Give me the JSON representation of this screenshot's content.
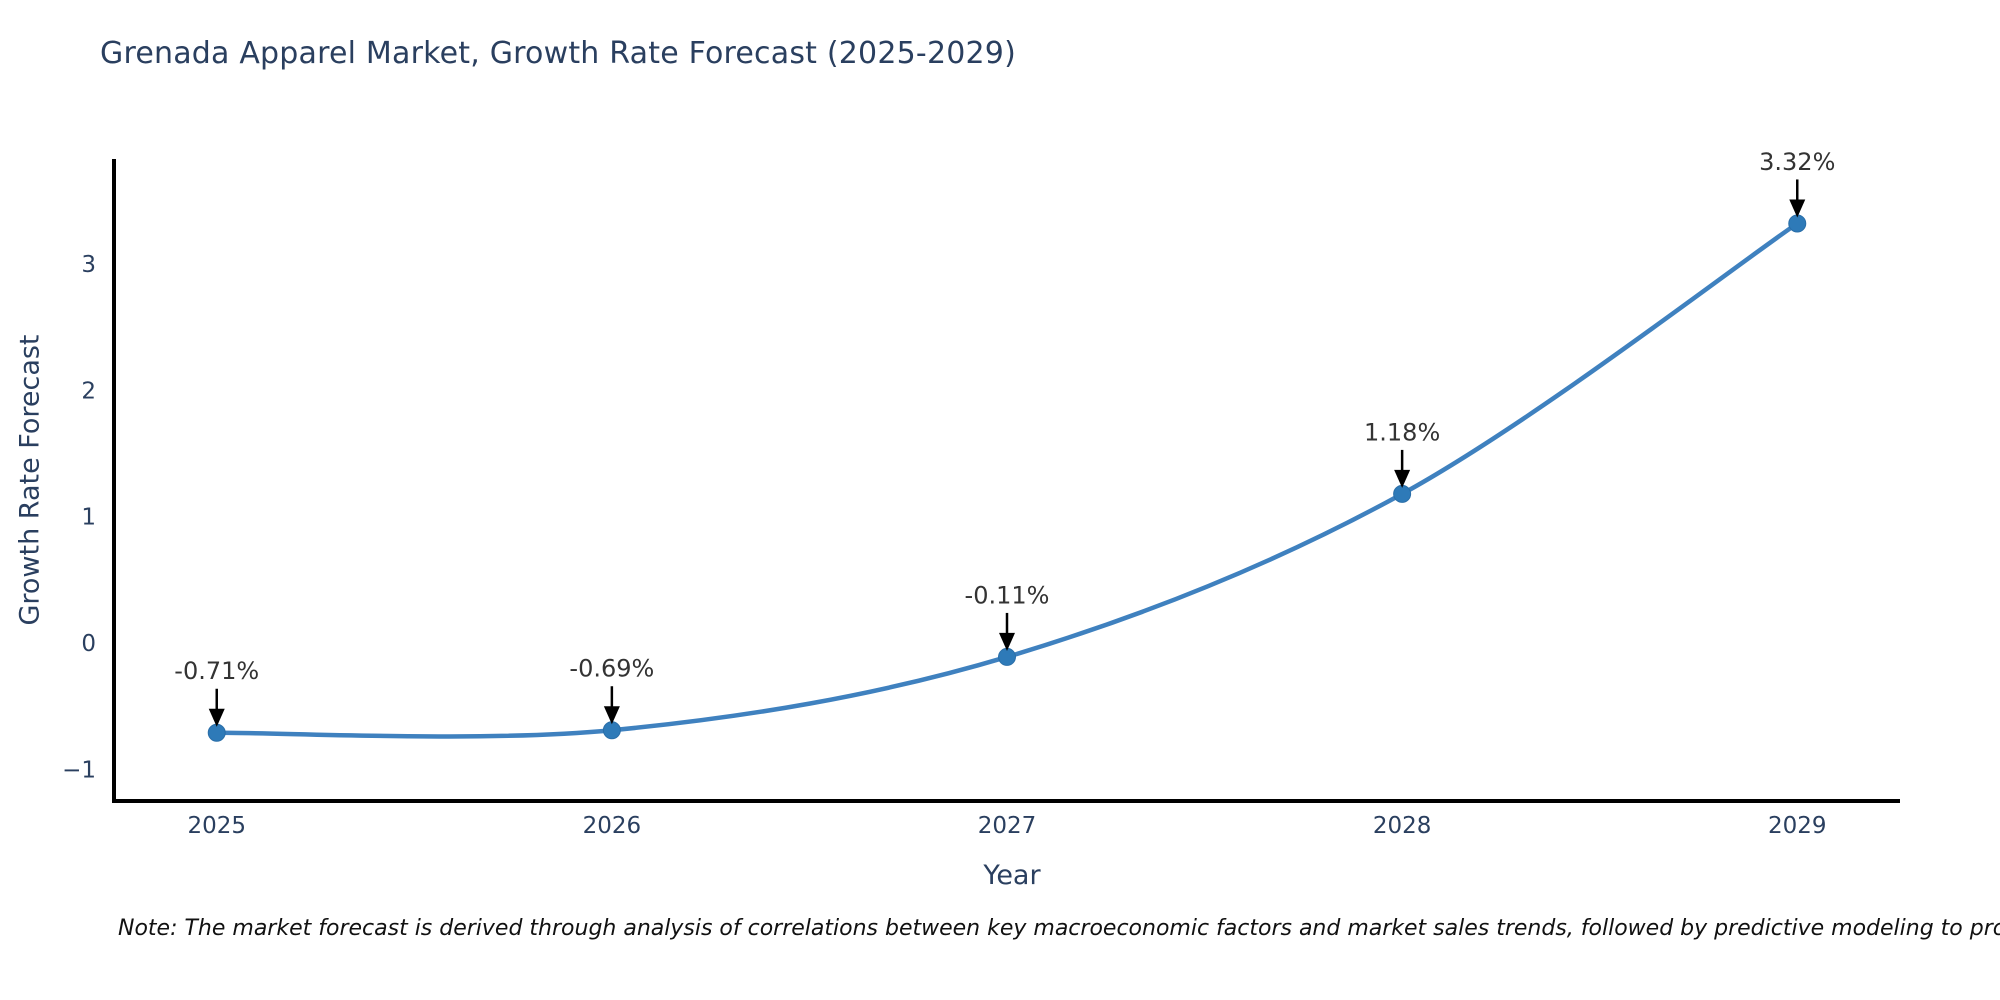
{
  "page": {
    "note": "Note: The market forecast is derived through analysis of correlations between key macroeconomic factors and market sales trends, followed by predictive modeling to project future sales"
  },
  "chart_data": {
    "type": "line",
    "title": "Grenada Apparel Market, Growth Rate Forecast (2025-2029)",
    "xlabel": "Year",
    "ylabel": "Growth Rate Forecast",
    "categories": [
      "2025",
      "2026",
      "2027",
      "2028",
      "2029"
    ],
    "series": [
      {
        "name": "Growth Rate Forecast",
        "values": [
          -0.71,
          -0.69,
          -0.11,
          1.18,
          3.32
        ],
        "point_labels": [
          "-0.71%",
          "-0.69%",
          "-0.11%",
          "1.18%",
          "3.32%"
        ]
      }
    ],
    "yticks": [
      -1,
      0,
      1,
      2,
      3
    ],
    "ylim": [
      -1.25,
      3.83
    ],
    "xlim_index": [
      -0.26,
      4.26
    ],
    "grid": false,
    "legend": false,
    "line_style": "spline",
    "markers": true,
    "annotation_style": "value label above each point with downward black arrow",
    "colors": {
      "line": "#3f81bf",
      "marker": "#2e7ab8",
      "marker_edge": "#2a6ea8",
      "axis": "#000000",
      "tick_label": "#2a3f5f",
      "title": "#2a3f5f",
      "annotation_text": "#333333",
      "annotation_arrow": "#000000",
      "background": "#ffffff"
    }
  }
}
